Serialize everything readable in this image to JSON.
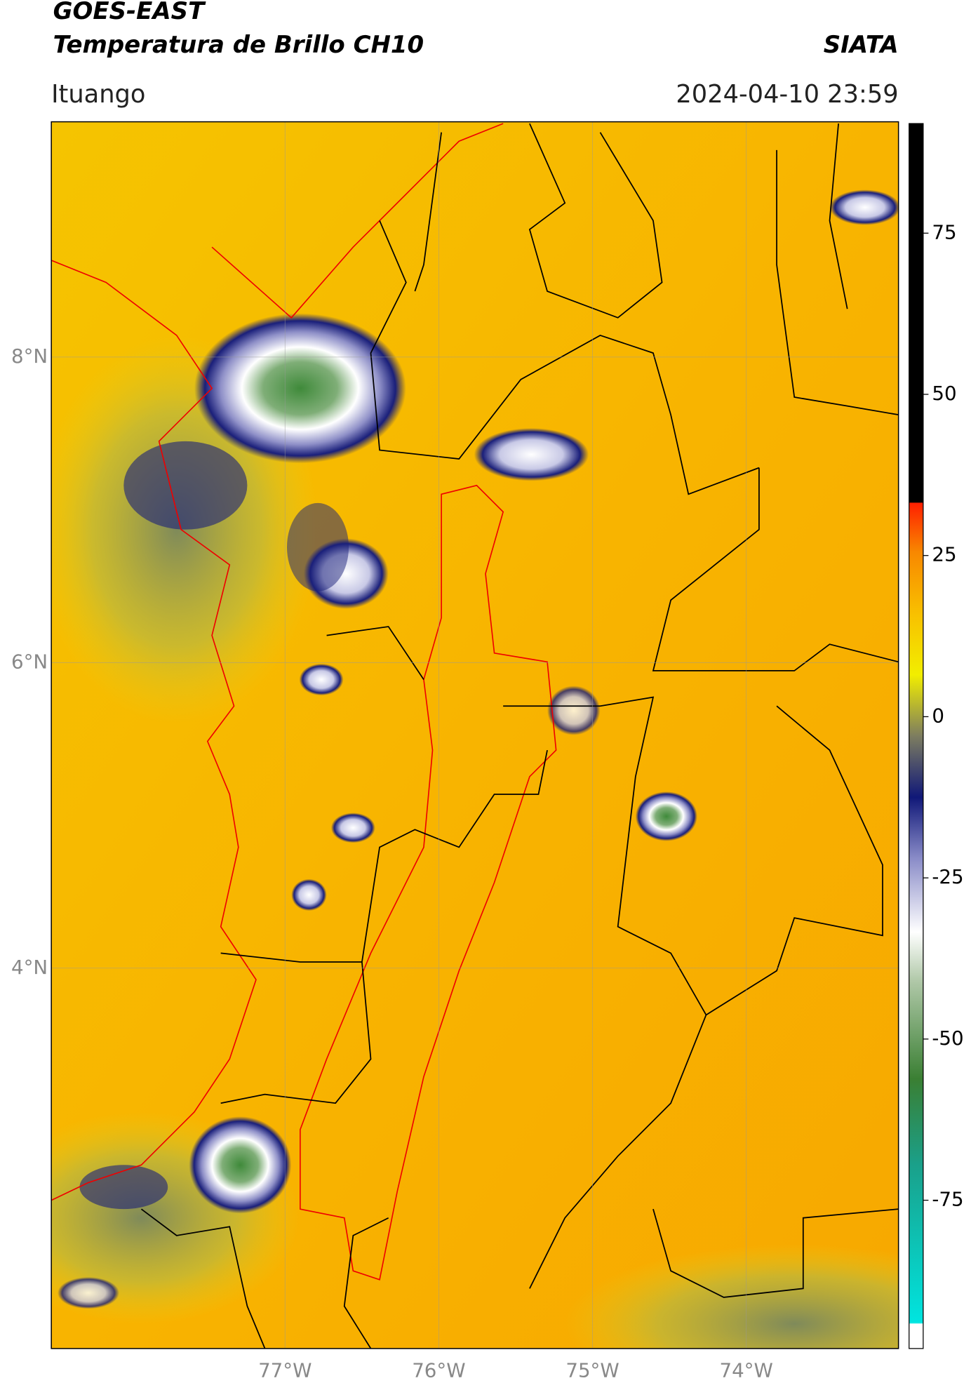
{
  "header": {
    "title_line1": "GOES-EAST",
    "title_line2": "Temperatura de Brillo CH10",
    "source": "SIATA",
    "location": "Ituango",
    "datetime": "2024-04-10 23:59"
  },
  "map": {
    "lon_range": [
      -78.52,
      -73.01
    ],
    "lat_range": [
      1.51,
      9.54
    ],
    "lon_ticks": [
      {
        "value": -77,
        "label": "77°W"
      },
      {
        "value": -76,
        "label": "76°W"
      },
      {
        "value": -75,
        "label": "75°W"
      },
      {
        "value": -74,
        "label": "74°W"
      }
    ],
    "lat_ticks": [
      {
        "value": 8,
        "label": "8°N"
      },
      {
        "value": 6,
        "label": "6°N"
      },
      {
        "value": 4,
        "label": "4°N"
      }
    ]
  },
  "colorbar": {
    "range": [
      -98,
      92
    ],
    "ticks": [
      75,
      50,
      25,
      0,
      -25,
      -50,
      -75
    ]
  }
}
